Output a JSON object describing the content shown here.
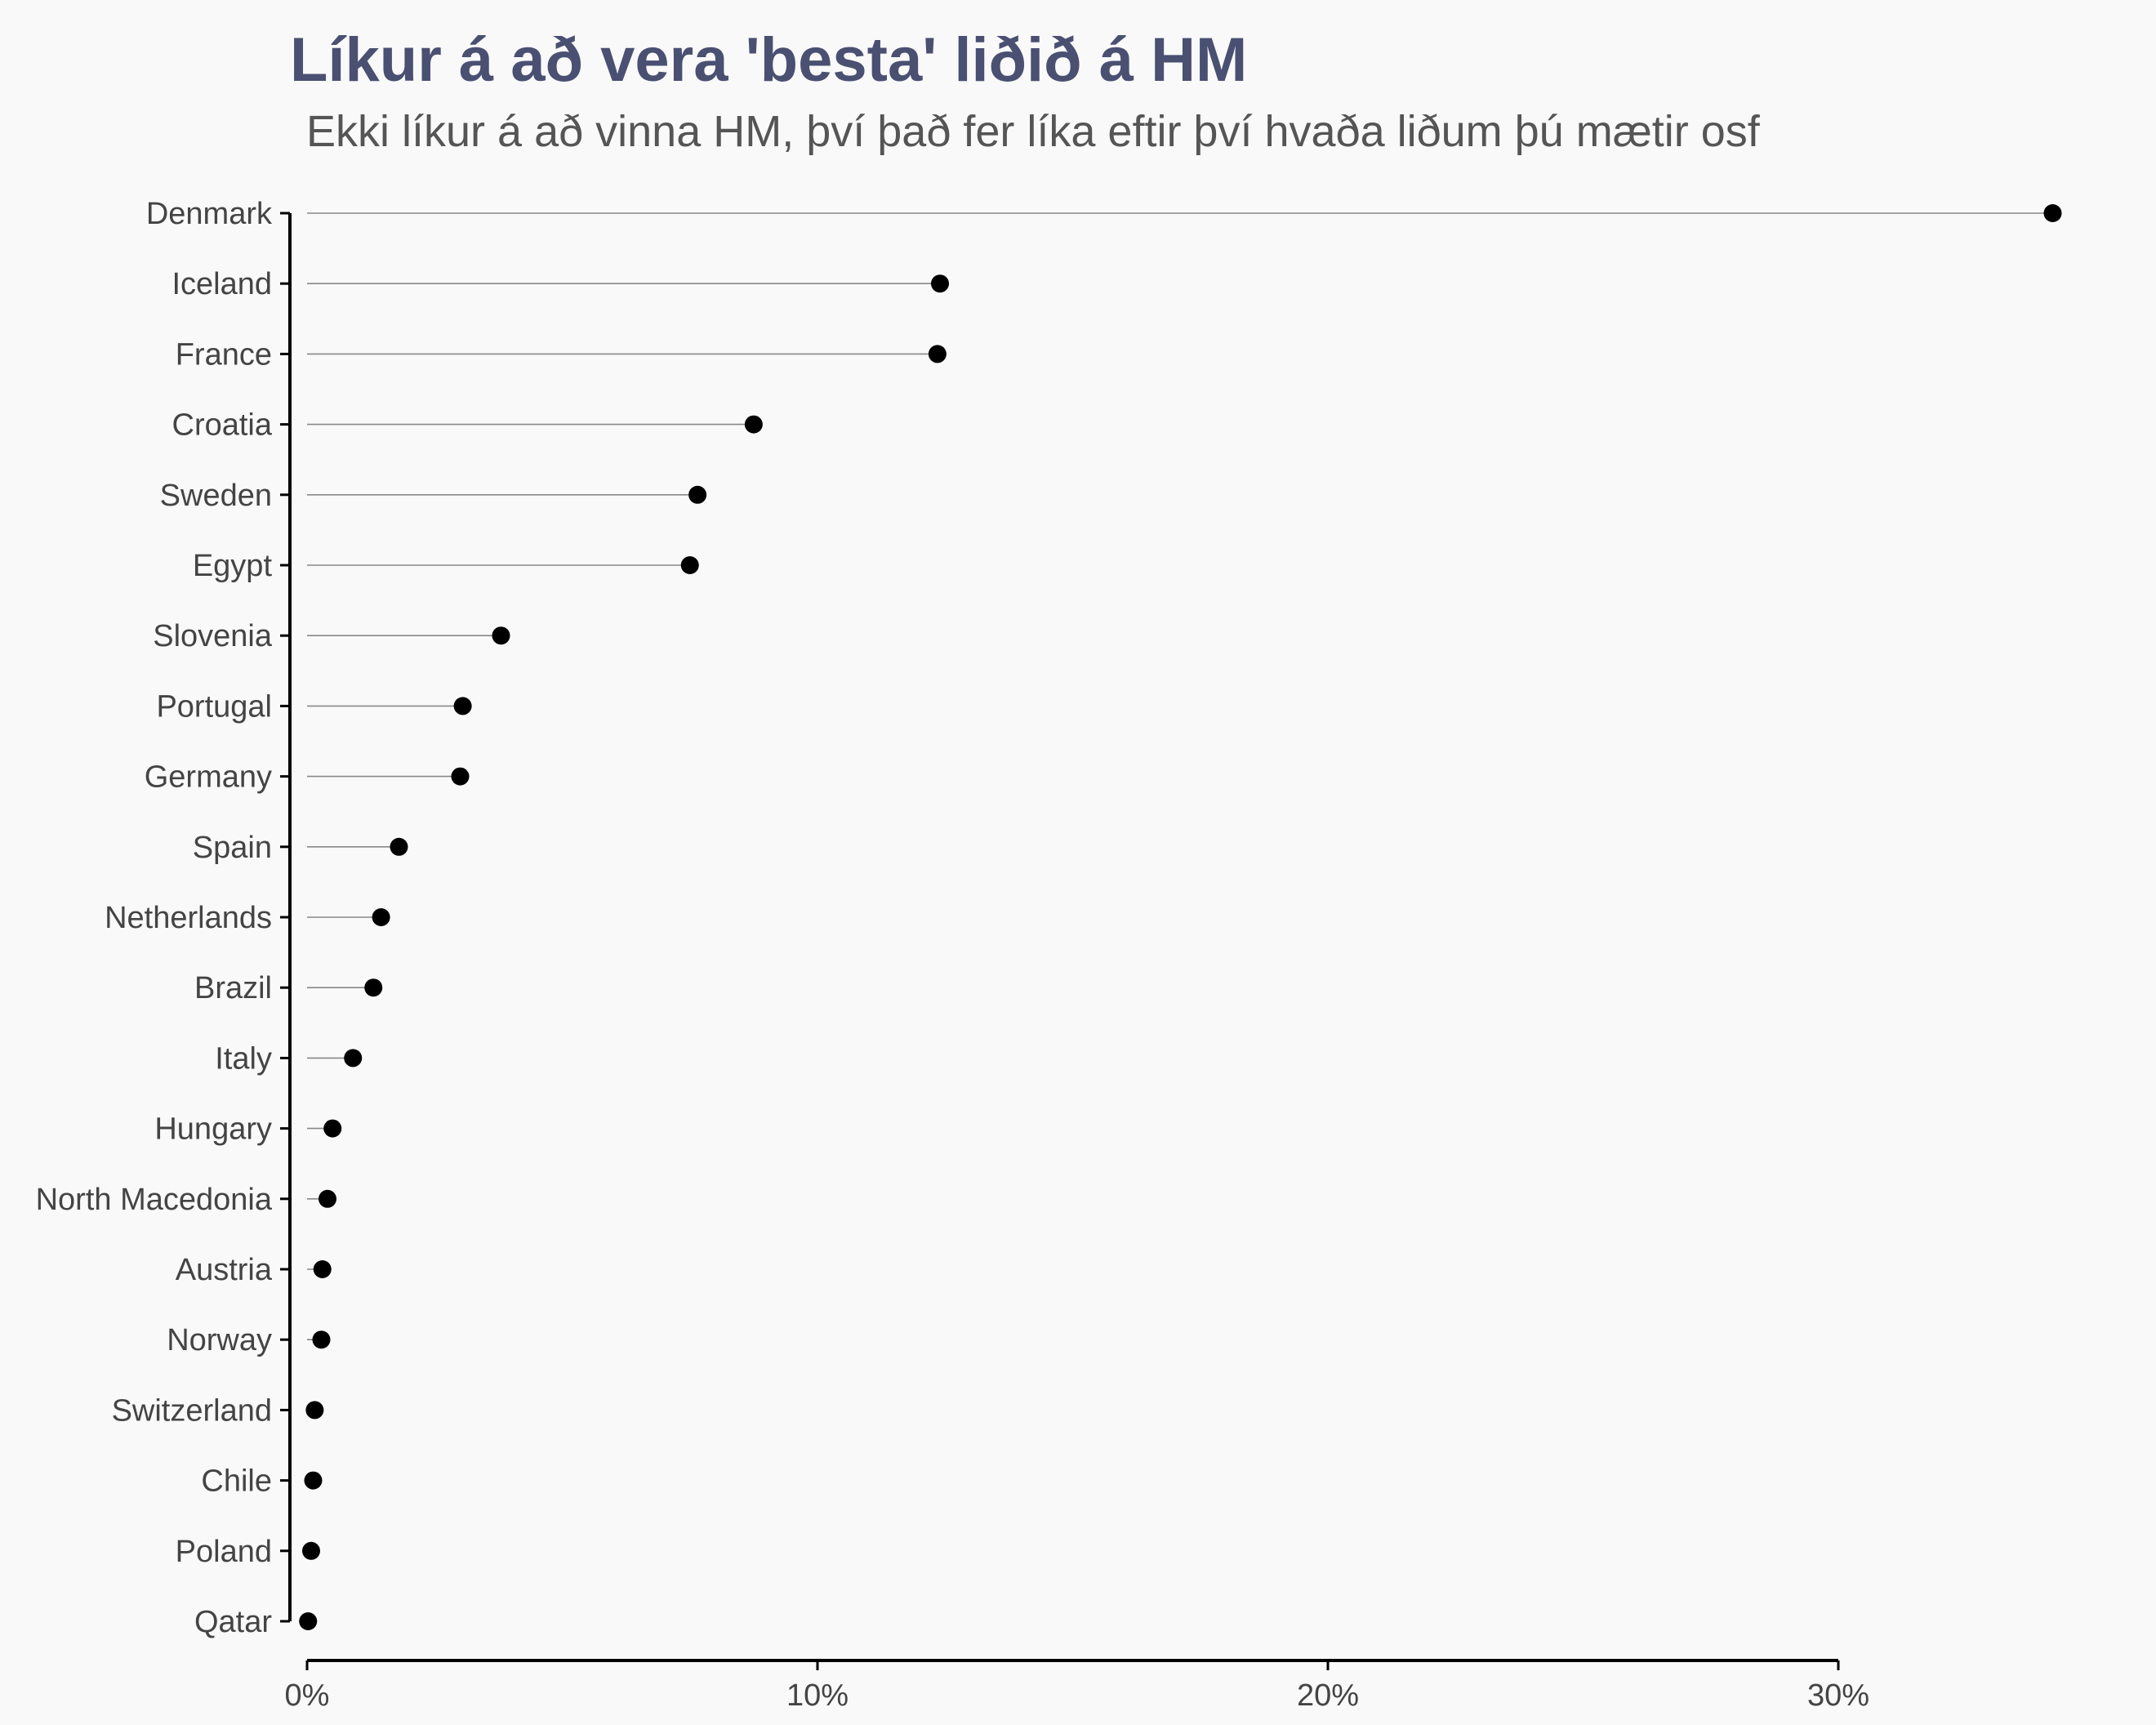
{
  "chart_data": {
    "type": "lollipop",
    "title": "Líkur á að vera 'besta' liðið á HM",
    "subtitle": "Ekki líkur á að vinna HM, því það fer líka eftir því hvaða liðum þú mætir osf",
    "xlabel": "",
    "ylabel": "",
    "x_ticks": [
      "0%",
      "10%",
      "20%",
      "30%"
    ],
    "x_tick_values": [
      0,
      10,
      20,
      30
    ],
    "xlim": [
      0,
      34.5
    ],
    "grid": false,
    "categories": [
      "Denmark",
      "Iceland",
      "France",
      "Croatia",
      "Sweden",
      "Egypt",
      "Slovenia",
      "Portugal",
      "Germany",
      "Spain",
      "Netherlands",
      "Brazil",
      "Italy",
      "Hungary",
      "North Macedonia",
      "Austria",
      "Norway",
      "Switzerland",
      "Chile",
      "Poland",
      "Qatar"
    ],
    "values": [
      34.2,
      12.4,
      12.35,
      8.75,
      7.65,
      7.5,
      3.8,
      3.05,
      3.0,
      1.8,
      1.45,
      1.3,
      0.9,
      0.5,
      0.4,
      0.3,
      0.28,
      0.15,
      0.12,
      0.08,
      0.02
    ],
    "colors": {
      "point": "#000000",
      "segment": "#888888",
      "axis": "#000000",
      "title": "#4a5072"
    }
  }
}
